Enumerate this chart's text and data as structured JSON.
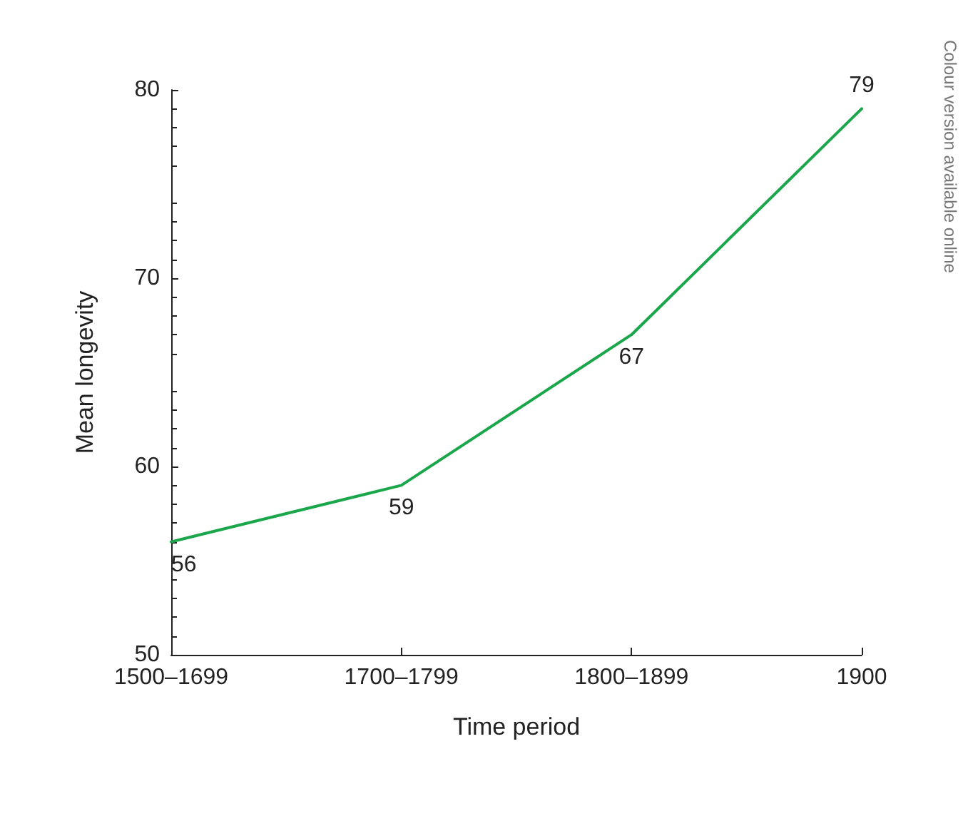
{
  "chart_data": {
    "type": "line",
    "xlabel": "Time period",
    "ylabel": "Mean longevity",
    "categories": [
      "1500–1699",
      "1700–1799",
      "1800–1899",
      "1900"
    ],
    "series": [
      {
        "color": "#1aa64a",
        "values": [
          56,
          59,
          67,
          79
        ]
      }
    ],
    "data_labels": true,
    "ylim": [
      50,
      80
    ],
    "yticks": [
      50,
      60,
      70,
      80
    ],
    "grid": false,
    "marker": "none",
    "line_style": "solid",
    "annotations": [
      "Colour version available online"
    ]
  }
}
